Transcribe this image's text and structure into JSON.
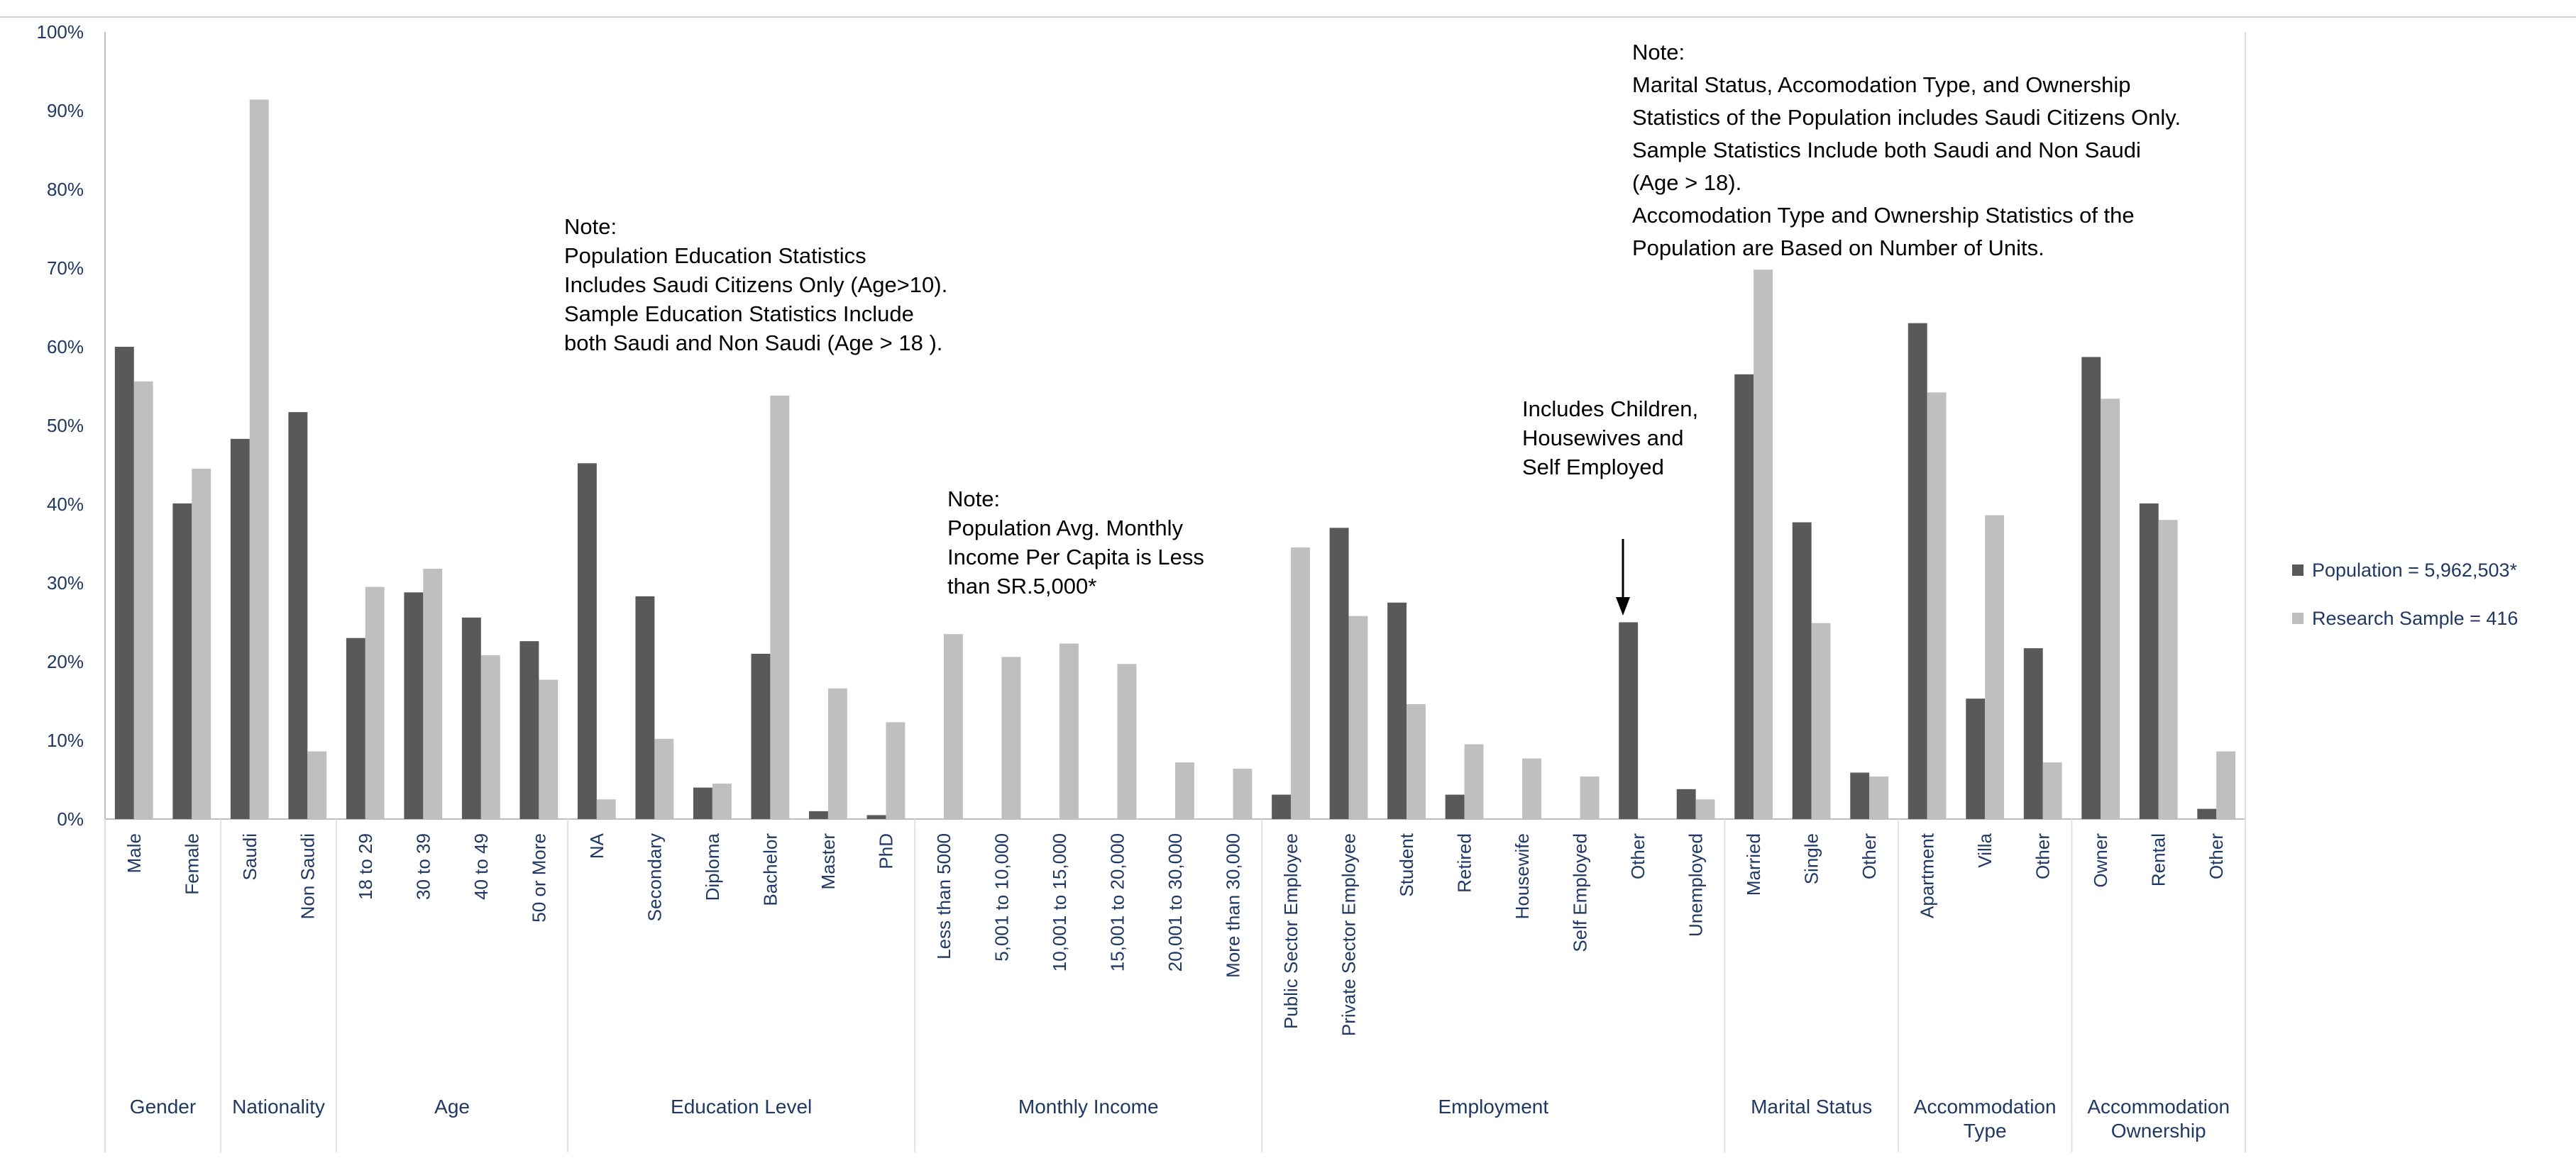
{
  "chart_data": {
    "type": "bar",
    "title": "",
    "xlabel": "",
    "ylabel": "",
    "ylim": [
      0,
      100
    ],
    "y_ticks": [
      "0%",
      "10%",
      "20%",
      "30%",
      "40%",
      "50%",
      "60%",
      "70%",
      "80%",
      "90%",
      "100%"
    ],
    "grid": false,
    "legend_position": "right",
    "colors": {
      "population": "#595959",
      "sample": "#bfbfbf",
      "axis": "#bfbfbf",
      "text": "#1f3864",
      "note": "#000000"
    },
    "series": [
      {
        "name": "Population = 5,962,503*",
        "values": [
          60,
          40.1,
          48.3,
          51.7,
          23,
          28.8,
          25.6,
          22.6,
          45.2,
          28.3,
          4,
          21,
          1,
          0.5,
          0,
          0,
          0,
          0,
          0,
          0,
          3.1,
          37,
          27.5,
          3.1,
          0,
          0,
          25,
          3.8,
          56.5,
          37.7,
          5.9,
          63,
          15.3,
          21.7,
          58.7,
          40.1,
          1.3
        ]
      },
      {
        "name": "Research Sample = 416",
        "values": [
          55.6,
          44.5,
          91.4,
          8.6,
          29.5,
          31.8,
          20.8,
          17.7,
          2.5,
          10.2,
          4.5,
          53.8,
          16.6,
          12.3,
          23.5,
          20.6,
          22.3,
          19.7,
          7.2,
          6.4,
          34.5,
          25.8,
          14.6,
          9.5,
          7.7,
          5.4,
          0,
          2.5,
          69.8,
          24.9,
          5.4,
          54.2,
          38.6,
          7.2,
          53.4,
          38,
          8.6
        ]
      }
    ],
    "groups": [
      {
        "label": "Gender",
        "categories": [
          "Male",
          "Female"
        ]
      },
      {
        "label": "Nationality",
        "categories": [
          "Saudi",
          "Non Saudi"
        ]
      },
      {
        "label": "Age",
        "categories": [
          "18 to 29",
          "30 to 39",
          "40 to 49",
          "50 or More"
        ]
      },
      {
        "label": "Education Level",
        "categories": [
          "NA",
          "Secondary",
          "Diploma",
          "Bachelor",
          "Master",
          "PhD"
        ]
      },
      {
        "label": "Monthly Income",
        "categories": [
          "Less than 5000",
          "5,001 to 10,000",
          "10,001 to 15,000",
          "15,001 to 20,000",
          "20,001 to 30,000",
          "More than 30,000"
        ]
      },
      {
        "label": "Employment",
        "categories": [
          "Public Sector Employee",
          "Private Sector Employee",
          "Student",
          "Retired",
          "Housewife",
          "Self Employed",
          "Other",
          "Unemployed"
        ]
      },
      {
        "label": "Marital Status",
        "categories": [
          "Married",
          "Single",
          "Other"
        ]
      },
      {
        "label": "Accommodation Type",
        "label_lines": [
          "Accommodation",
          "Type"
        ],
        "categories": [
          "Apartment",
          "Villa",
          "Other"
        ]
      },
      {
        "label": "Accommodation Ownership",
        "label_lines": [
          "Accommodation",
          "Ownership"
        ],
        "categories": [
          "Owner",
          "Rental",
          "Other"
        ]
      }
    ],
    "annotations": [
      {
        "id": "note-education",
        "lines": [
          "Note:",
          "Population Education Statistics",
          "Includes Saudi Citizens Only  (Age>10).",
          "Sample Education Statistics Include",
          "both Saudi and Non Saudi (Age > 18 )."
        ]
      },
      {
        "id": "note-income",
        "lines": [
          "Note:",
          "Population Avg. Monthly",
          "Income Per Capita is Less",
          "than SR.5,000*"
        ]
      },
      {
        "id": "note-other",
        "lines": [
          "Includes Children,",
          "Housewives and",
          "Self Employed"
        ]
      },
      {
        "id": "note-marital",
        "lines": [
          "Note:",
          "Marital Status, Accomodation Type, and Ownership",
          "Statistics of the Population includes Saudi Citizens Only.",
          "Sample Statistics Include both Saudi and Non Saudi",
          "(Age > 18).",
          "Accomodation Type and Ownership Statistics of the",
          "Population are Based on Number of Units."
        ]
      }
    ]
  }
}
